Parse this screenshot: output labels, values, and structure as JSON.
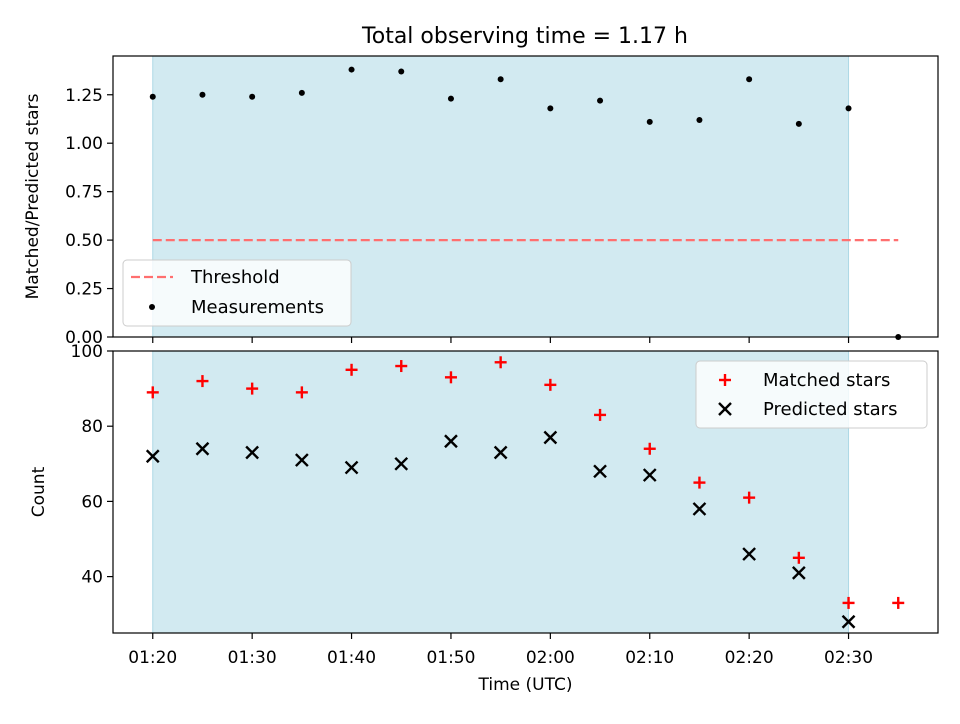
{
  "title": "Total observing time = 1.17 h",
  "colors": {
    "shade": "#add8e6",
    "threshold": "#ff6f6f",
    "matched": "#ff0000",
    "predicted": "#000000",
    "measure": "#000000"
  },
  "chart_data": [
    {
      "type": "scatter",
      "ylabel": "Matched/Predicted stars",
      "ylim": [
        0,
        1.45
      ],
      "xlim": [
        "01:16",
        "02:39"
      ],
      "yticks": [
        "0.00",
        "0.25",
        "0.50",
        "0.75",
        "1.00",
        "1.25"
      ],
      "ytick_values": [
        0,
        0.25,
        0.5,
        0.75,
        1.0,
        1.25
      ],
      "shaded_span": [
        "01:20",
        "02:30"
      ],
      "threshold": {
        "label": "Threshold",
        "value": 0.5,
        "x_range": [
          "01:20",
          "02:35"
        ],
        "style": "dashed"
      },
      "series": [
        {
          "name": "Measurements",
          "x": [
            "01:20",
            "01:25",
            "01:30",
            "01:35",
            "01:40",
            "01:45",
            "01:50",
            "01:55",
            "02:00",
            "02:05",
            "02:10",
            "02:15",
            "02:20",
            "02:25",
            "02:30",
            "02:35"
          ],
          "values": [
            1.24,
            1.25,
            1.24,
            1.26,
            1.38,
            1.37,
            1.23,
            1.33,
            1.18,
            1.22,
            1.11,
            1.12,
            1.33,
            1.1,
            1.18,
            0.0
          ]
        }
      ],
      "legend": {
        "placement": "lower-left",
        "items": [
          "Threshold",
          "Measurements"
        ]
      }
    },
    {
      "type": "scatter",
      "ylabel": "Count",
      "xlabel": "Time (UTC)",
      "ylim": [
        25,
        100
      ],
      "xlim": [
        "01:16",
        "02:39"
      ],
      "yticks": [
        "40",
        "60",
        "80",
        "100"
      ],
      "ytick_values": [
        40,
        60,
        80,
        100
      ],
      "xticks": [
        "01:20",
        "01:30",
        "01:40",
        "01:50",
        "02:00",
        "02:10",
        "02:20",
        "02:30"
      ],
      "shaded_span": [
        "01:20",
        "02:30"
      ],
      "series": [
        {
          "name": "Matched stars",
          "marker": "+",
          "x": [
            "01:20",
            "01:25",
            "01:30",
            "01:35",
            "01:40",
            "01:45",
            "01:50",
            "01:55",
            "02:00",
            "02:05",
            "02:10",
            "02:15",
            "02:20",
            "02:25",
            "02:30",
            "02:35"
          ],
          "values": [
            89,
            92,
            90,
            89,
            95,
            96,
            93,
            97,
            91,
            83,
            74,
            65,
            61,
            45,
            33,
            33
          ]
        },
        {
          "name": "Predicted stars",
          "marker": "x",
          "x": [
            "01:20",
            "01:25",
            "01:30",
            "01:35",
            "01:40",
            "01:45",
            "01:50",
            "01:55",
            "02:00",
            "02:05",
            "02:10",
            "02:15",
            "02:20",
            "02:25",
            "02:30"
          ],
          "values": [
            72,
            74,
            73,
            71,
            69,
            70,
            76,
            73,
            77,
            68,
            67,
            58,
            46,
            41,
            28
          ]
        }
      ],
      "legend": {
        "placement": "top-right",
        "items": [
          "Matched stars",
          "Predicted stars"
        ]
      }
    }
  ]
}
